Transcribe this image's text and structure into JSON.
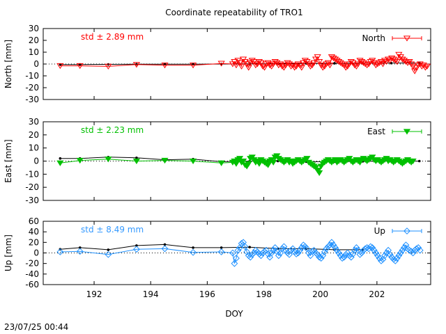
{
  "title": "Coordinate repeatability of TRO1",
  "footer": {
    "timestamp": "23/07/25 00:44"
  },
  "xlabel": "DOY",
  "xlim": [
    190.2,
    203.9
  ],
  "xticks": [
    "192",
    "194",
    "196",
    "198",
    "200",
    "202"
  ],
  "chart_data": [
    {
      "type": "line",
      "name": "north",
      "ylabel": "North [mm]",
      "ylim": [
        -30,
        30
      ],
      "yticks": [
        "30",
        "20",
        "10",
        "0",
        "-10",
        "-20",
        "-30"
      ],
      "std_text": "std ± 2.89 mm",
      "std_color": "#ff0000",
      "legend": "North",
      "color": "#ff0000",
      "marker": "triangle-down-open",
      "reference": {
        "x": [
          190.8,
          191.5,
          192.5,
          193.5,
          194.5,
          195.5,
          196.5,
          197.5,
          198.5,
          199.5,
          200.5,
          201.5,
          202.5,
          203.5
        ],
        "y": [
          -0.5,
          -0.4,
          -0.3,
          -0.2,
          -0.2,
          -0.1,
          0.0,
          0.2,
          0.3,
          0.5,
          0.6,
          0.7,
          0.8,
          0.9
        ]
      },
      "sparse": {
        "x": [
          190.8,
          191.5,
          192.5,
          193.5,
          194.5,
          195.5,
          196.5
        ],
        "y": [
          -1.5,
          -1.5,
          -2.0,
          -0.5,
          -1.0,
          -1.0,
          0.5
        ]
      },
      "dense": {
        "x_start": 196.9,
        "x_end": 203.9,
        "step": 0.0625,
        "y": [
          0,
          2,
          -1,
          3,
          1,
          -2,
          4,
          2,
          0,
          -3,
          1,
          3,
          2,
          -1,
          0,
          2,
          1,
          -2,
          -3,
          0,
          1,
          -1,
          -2,
          0,
          2,
          1,
          -1,
          0,
          -2,
          -3,
          -1,
          1,
          0,
          -2,
          -1,
          -3,
          -2,
          0,
          -1,
          -3,
          1,
          3,
          2,
          0,
          -2,
          -1,
          1,
          4,
          6,
          2,
          -1,
          -3,
          -2,
          0,
          1,
          -1,
          6,
          5,
          4,
          3,
          2,
          1,
          0,
          -1,
          -3,
          -2,
          0,
          2,
          1,
          -1,
          -2,
          0,
          3,
          2,
          1,
          0,
          -1,
          0,
          2,
          3,
          1,
          -1,
          0,
          1,
          2,
          0,
          3,
          2,
          4,
          3,
          5,
          4,
          3,
          2,
          8,
          6,
          4,
          3,
          2,
          1,
          2,
          0,
          -2,
          -6,
          -3,
          -1,
          0,
          -2,
          -1,
          -3,
          -2
        ]
      }
    },
    {
      "type": "line",
      "name": "east",
      "ylabel": "East [mm]",
      "ylim": [
        -30,
        30
      ],
      "yticks": [
        "30",
        "20",
        "10",
        "0",
        "-10",
        "-20",
        "-30"
      ],
      "std_text": "std ± 2.23 mm",
      "std_color": "#00c000",
      "legend": "East",
      "color": "#00c000",
      "marker": "triangle-down-filled",
      "reference": {
        "x": [
          190.8,
          191.5,
          192.5,
          193.5,
          194.5,
          195.5,
          196.5,
          197.5,
          198.5,
          199.5,
          200.5,
          201.5,
          202.5,
          203.5
        ],
        "y": [
          2.0,
          2.0,
          3.0,
          2.5,
          1.0,
          1.5,
          -0.5,
          0.0,
          0.0,
          -0.5,
          -0.5,
          -0.2,
          0.0,
          0.0
        ]
      },
      "sparse": {
        "x": [
          190.8,
          191.5,
          192.5,
          193.5,
          194.5,
          195.5,
          196.5
        ],
        "y": [
          -1.5,
          0.5,
          1.5,
          0.0,
          0.5,
          0.0,
          -1.5
        ]
      },
      "dense": {
        "x_start": 196.9,
        "x_end": 203.9,
        "step": 0.0625,
        "y": [
          -1,
          0,
          -2,
          1,
          2,
          -1,
          0,
          -3,
          -4,
          -2,
          2,
          3,
          1,
          -1,
          0,
          -2,
          1,
          0,
          -1,
          -2,
          -3,
          0,
          1,
          -1,
          3,
          4,
          2,
          1,
          0,
          -1,
          0,
          1,
          -1,
          0,
          -2,
          -1,
          0,
          1,
          0,
          -1,
          0,
          1,
          2,
          -1,
          -2,
          -3,
          -4,
          -5,
          -7,
          -9,
          -4,
          -2,
          -1,
          0,
          1,
          0,
          -1,
          0,
          1,
          -1,
          0,
          1,
          0,
          -1,
          0,
          1,
          2,
          0,
          -1,
          0,
          1,
          0,
          -1,
          1,
          2,
          1,
          0,
          1,
          2,
          3,
          1,
          0,
          1,
          0,
          -1,
          0,
          1,
          2,
          0,
          1,
          0,
          -1,
          0,
          1,
          0,
          -1,
          -2,
          -1,
          0,
          1,
          0,
          -1,
          0
        ]
      }
    },
    {
      "type": "line",
      "name": "up",
      "ylabel": "Up [mm]",
      "ylim": [
        -60,
        60
      ],
      "yticks": [
        "60",
        "40",
        "20",
        "0",
        "-20",
        "-40",
        "-60"
      ],
      "std_text": "std ± 8.49 mm",
      "std_color": "#3399ff",
      "legend": "Up",
      "color": "#1e90ff",
      "marker": "diamond-open",
      "reference": {
        "x": [
          190.8,
          191.5,
          192.5,
          193.5,
          194.5,
          195.5,
          196.5,
          197.5,
          198.5,
          199.5,
          200.5,
          201.5
        ],
        "y": [
          7.0,
          10.0,
          6.0,
          14.0,
          16.0,
          10.0,
          10.0,
          11.0,
          8.0,
          8.0,
          6.0,
          6.0
        ]
      },
      "sparse": {
        "x": [
          190.8,
          191.5,
          192.5,
          193.5,
          194.5,
          195.5,
          196.5
        ],
        "y": [
          2.0,
          3.0,
          -3.0,
          7.0,
          8.0,
          1.0,
          2.0
        ]
      },
      "dense": {
        "x_start": 196.9,
        "x_end": 203.9,
        "step": 0.0625,
        "y": [
          0,
          -20,
          -10,
          5,
          10,
          18,
          20,
          12,
          2,
          -5,
          -8,
          -3,
          0,
          5,
          2,
          -2,
          -5,
          0,
          3,
          5,
          -2,
          -8,
          0,
          5,
          10,
          3,
          -5,
          0,
          8,
          12,
          5,
          0,
          -3,
          5,
          8,
          2,
          -2,
          0,
          5,
          10,
          15,
          12,
          8,
          0,
          -5,
          3,
          5,
          0,
          -3,
          -8,
          -10,
          -5,
          2,
          8,
          12,
          15,
          20,
          15,
          10,
          5,
          0,
          -5,
          -10,
          -8,
          -3,
          0,
          -5,
          -8,
          -2,
          5,
          10,
          5,
          -3,
          0,
          5,
          8,
          10,
          8,
          12,
          10,
          5,
          0,
          -5,
          -10,
          -15,
          -12,
          -5,
          0,
          5,
          -3,
          -8,
          -12,
          -15,
          -10,
          -5,
          0,
          5,
          10,
          15,
          8,
          5,
          3,
          0,
          5,
          8,
          10,
          5
        ]
      }
    }
  ]
}
